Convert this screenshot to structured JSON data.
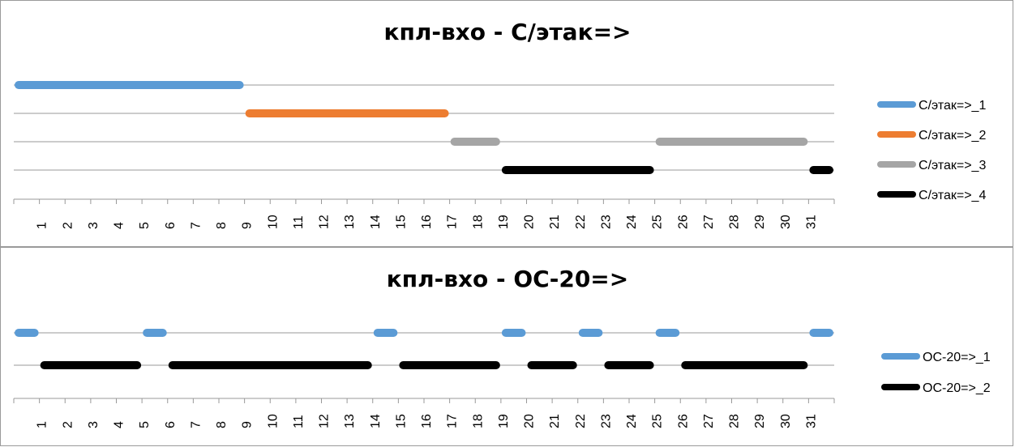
{
  "chart_data": [
    {
      "type": "timeline",
      "title": "кпл-вхо - С/этак=>",
      "x_tick_labels": [
        "1",
        "2",
        "3",
        "4",
        "5",
        "6",
        "7",
        "8",
        "9",
        "10",
        "11",
        "12",
        "13",
        "14",
        "15",
        "16",
        "17",
        "18",
        "19",
        "20",
        "21",
        "22",
        "23",
        "24",
        "25",
        "26",
        "27",
        "28",
        "29",
        "30",
        "31"
      ],
      "xlim": [
        0,
        32
      ],
      "legend_position": "right",
      "grid": true,
      "series": [
        {
          "name": "С/этак=>_1",
          "color": "#5B9BD5",
          "segments": [
            [
              0,
              9
            ]
          ]
        },
        {
          "name": "С/этак=>_2",
          "color": "#ED7D31",
          "segments": [
            [
              9,
              17
            ]
          ]
        },
        {
          "name": "С/этак=>_3",
          "color": "#A5A5A5",
          "segments": [
            [
              17,
              19
            ],
            [
              25,
              31
            ]
          ]
        },
        {
          "name": "С/этак=>_4",
          "color": "#000000",
          "segments": [
            [
              19,
              25
            ],
            [
              31,
              32
            ]
          ]
        }
      ]
    },
    {
      "type": "timeline",
      "title": "кпл-вхо - ОС-20=>",
      "x_tick_labels": [
        "1",
        "2",
        "3",
        "4",
        "5",
        "6",
        "7",
        "8",
        "9",
        "10",
        "11",
        "12",
        "13",
        "14",
        "15",
        "16",
        "17",
        "18",
        "19",
        "20",
        "21",
        "22",
        "23",
        "24",
        "25",
        "26",
        "27",
        "28",
        "29",
        "30",
        "31"
      ],
      "xlim": [
        0,
        32
      ],
      "legend_position": "right",
      "grid": true,
      "series": [
        {
          "name": "ОС-20=>_1",
          "color": "#5B9BD5",
          "segments": [
            [
              0,
              1
            ],
            [
              5,
              6
            ],
            [
              14,
              15
            ],
            [
              19,
              20
            ],
            [
              22,
              23
            ],
            [
              25,
              26
            ],
            [
              31,
              32
            ]
          ]
        },
        {
          "name": "ОС-20=>_2",
          "color": "#000000",
          "segments": [
            [
              1,
              5
            ],
            [
              6,
              14
            ],
            [
              15,
              19
            ],
            [
              20,
              22
            ],
            [
              23,
              25
            ],
            [
              26,
              31
            ]
          ]
        }
      ]
    }
  ]
}
